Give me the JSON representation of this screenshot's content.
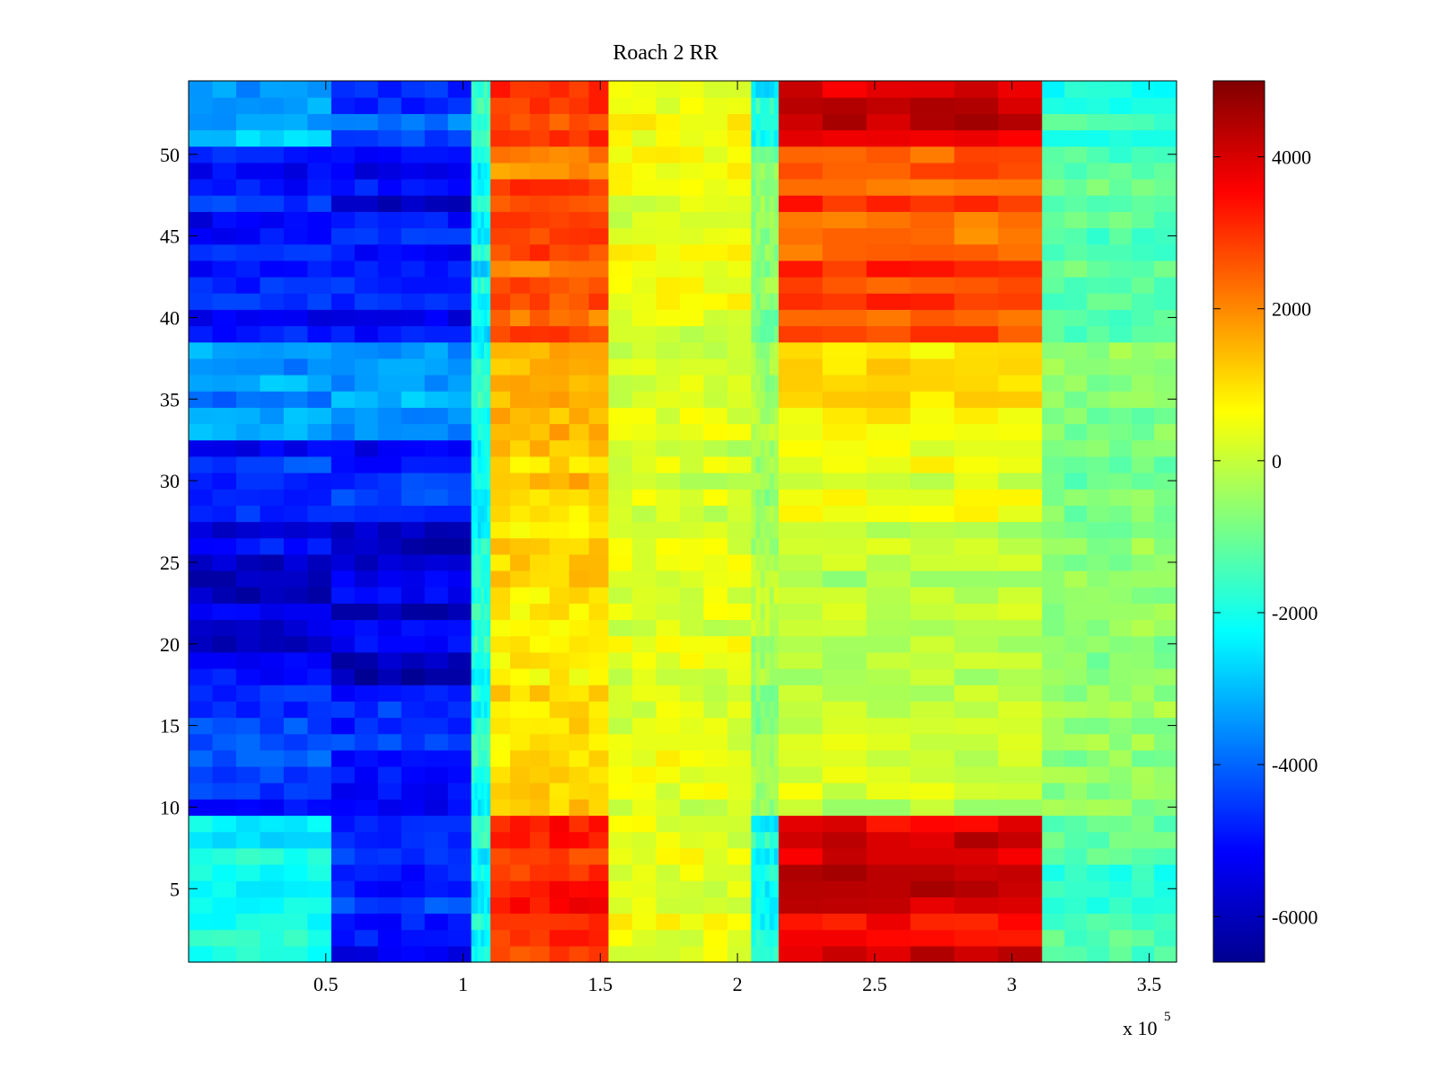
{
  "chart_data": {
    "type": "heatmap",
    "title": "Roach 2 RR",
    "xlabel": "",
    "ylabel": "",
    "x_exponent_label": "x 10",
    "x_exponent_power": "5",
    "xlim": [
      0,
      3.6
    ],
    "ylim": [
      0.5,
      54.5
    ],
    "xticks": [
      0.5,
      1,
      1.5,
      2,
      2.5,
      3,
      3.5
    ],
    "xtick_labels": [
      "0.5",
      "1",
      "1.5",
      "2",
      "2.5",
      "3",
      "3.5"
    ],
    "yticks": [
      5,
      10,
      15,
      20,
      25,
      30,
      35,
      40,
      45,
      50
    ],
    "ytick_labels": [
      "5",
      "10",
      "15",
      "20",
      "25",
      "30",
      "35",
      "40",
      "45",
      "50"
    ],
    "rows": 54,
    "colormap": "jet",
    "colorbar": {
      "range": [
        -6600,
        5000
      ],
      "ticks": [
        -6000,
        -4000,
        -2000,
        0,
        2000,
        4000
      ],
      "tick_labels": [
        "-6000",
        "-4000",
        "-2000",
        "0",
        "2000",
        "4000"
      ],
      "placement": "right"
    },
    "column_bands": [
      {
        "x_start": 0.0,
        "x_end": 0.52,
        "group_values": [
          -2200,
          -4500,
          -5500,
          -4800,
          -3500,
          -4800,
          -3000
        ]
      },
      {
        "x_start": 0.52,
        "x_end": 1.03,
        "group_values": [
          -4800,
          -4800,
          -5500,
          -4800,
          -3500,
          -5200,
          -4200
        ]
      },
      {
        "x_start": 1.03,
        "x_end": 1.1,
        "group_values": [
          -2000,
          -2000,
          -2000,
          -2200,
          -2000,
          -2200,
          -2000
        ]
      },
      {
        "x_start": 1.1,
        "x_end": 1.53,
        "group_values": [
          3200,
          1000,
          1000,
          1200,
          1400,
          2500,
          3200
        ]
      },
      {
        "x_start": 1.53,
        "x_end": 2.05,
        "group_values": [
          400,
          300,
          300,
          200,
          300,
          400,
          600
        ]
      },
      {
        "x_start": 2.05,
        "x_end": 2.15,
        "group_values": [
          -2000,
          -600,
          -300,
          -500,
          -400,
          -800,
          -2000
        ]
      },
      {
        "x_start": 2.15,
        "x_end": 3.11,
        "group_values": [
          3800,
          0,
          -200,
          300,
          900,
          2600,
          3900
        ]
      },
      {
        "x_start": 3.11,
        "x_end": 3.6,
        "group_values": [
          -1600,
          -700,
          -700,
          -800,
          -800,
          -1300,
          -1600
        ]
      }
    ],
    "row_groups": [
      {
        "y_start": 0.5,
        "y_end": 9.5
      },
      {
        "y_start": 9.5,
        "y_end": 17.5
      },
      {
        "y_start": 17.5,
        "y_end": 27.5
      },
      {
        "y_start": 27.5,
        "y_end": 32.5
      },
      {
        "y_start": 32.5,
        "y_end": 38.5
      },
      {
        "y_start": 38.5,
        "y_end": 50.5
      },
      {
        "y_start": 50.5,
        "y_end": 54.5
      }
    ]
  }
}
